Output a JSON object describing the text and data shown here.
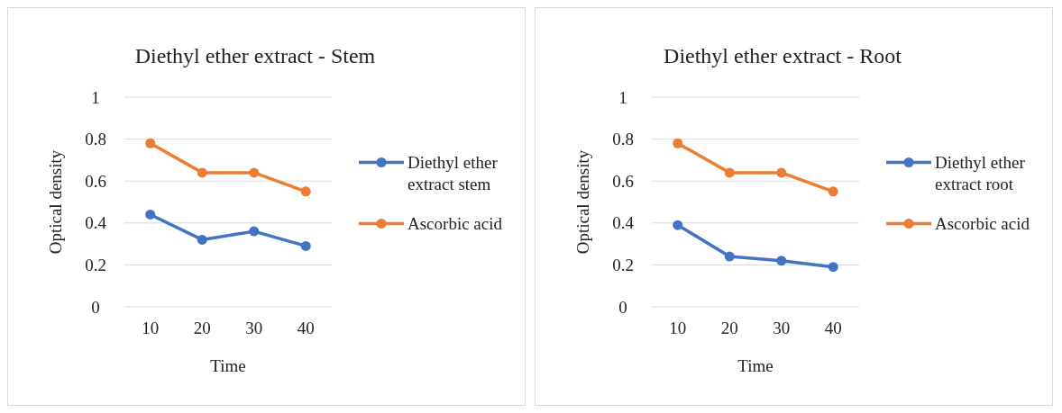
{
  "chart_data": [
    {
      "type": "line",
      "title": "Diethyl ether extract - Stem",
      "xlabel": "Time",
      "ylabel": "Optical density",
      "categories": [
        "10",
        "20",
        "30",
        "40"
      ],
      "ylim": [
        0,
        1
      ],
      "yticks": [
        0,
        0.2,
        0.4,
        0.6,
        0.8,
        1
      ],
      "grid": "y",
      "legend": "right",
      "marker": "circle",
      "series": [
        {
          "name": "Diethyl ether extract stem",
          "color": "#4472c4",
          "values": [
            0.44,
            0.32,
            0.36,
            0.29
          ]
        },
        {
          "name": "Ascorbic acid",
          "color": "#ed7d31",
          "values": [
            0.78,
            0.64,
            0.64,
            0.55
          ]
        }
      ]
    },
    {
      "type": "line",
      "title": "Diethyl ether extract - Root",
      "xlabel": "Time",
      "ylabel": "Optical density",
      "categories": [
        "10",
        "20",
        "30",
        "40"
      ],
      "ylim": [
        0,
        1
      ],
      "yticks": [
        0,
        0.2,
        0.4,
        0.6,
        0.8,
        1
      ],
      "grid": "y",
      "legend": "right",
      "marker": "circle",
      "series": [
        {
          "name": "Diethyl ether extract root",
          "color": "#4472c4",
          "values": [
            0.39,
            0.24,
            0.22,
            0.19
          ]
        },
        {
          "name": "Ascorbic acid",
          "color": "#ed7d31",
          "values": [
            0.78,
            0.64,
            0.64,
            0.55
          ]
        }
      ]
    }
  ]
}
